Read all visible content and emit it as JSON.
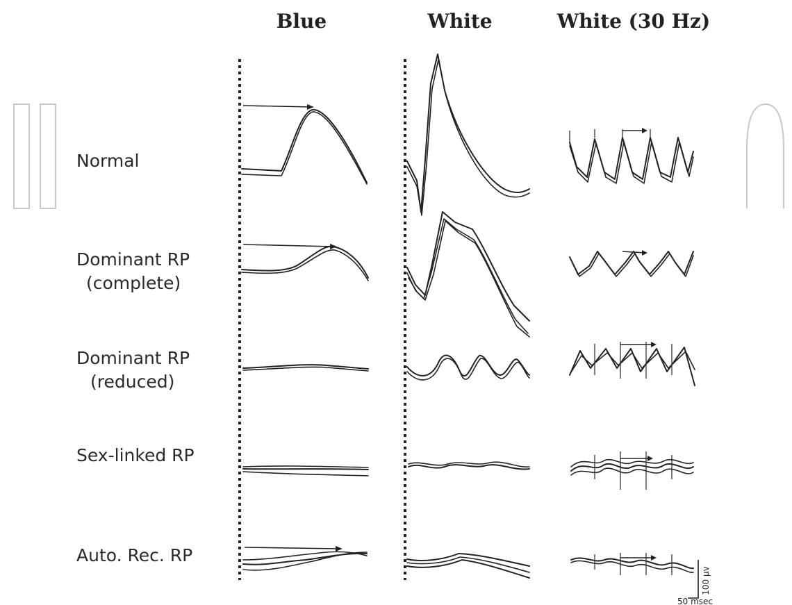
{
  "watermark_text": "In",
  "columns": {
    "blue": "Blue",
    "white": "White",
    "white_30hz": "White (30 Hz)"
  },
  "rows": [
    {
      "label_lines": [
        "Normal"
      ]
    },
    {
      "label_lines": [
        "Dominant RP",
        "(complete)"
      ]
    },
    {
      "label_lines": [
        "Dominant RP",
        "(reduced)"
      ]
    },
    {
      "label_lines": [
        "Sex-linked RP"
      ]
    },
    {
      "label_lines": [
        "Auto. Rec. RP"
      ]
    }
  ],
  "scale_bar": {
    "amplitude": "100 µv",
    "time": "50 msec"
  },
  "colors": {
    "ink": "#222222",
    "watermark": "#c8c8c8"
  }
}
